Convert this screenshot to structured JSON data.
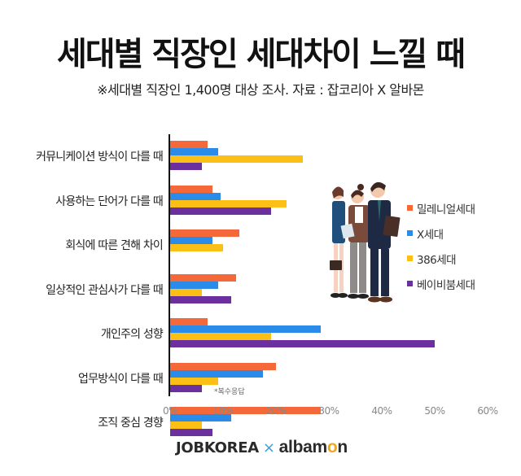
{
  "title": "세대별 직장인 세대차이 느낄 때",
  "subtitle": "※세대별 직장인 1,400명 대상 조사. 자료 : 잡코리아 X 알바몬",
  "note": "*복수응답",
  "footer": {
    "brand1": "JOBKOREA",
    "separator": "×",
    "brand2_pre": "albam",
    "brand2_o": "o",
    "brand2_post": "n"
  },
  "legend": [
    {
      "label": "밀레니얼세대",
      "color": "#f4683a"
    },
    {
      "label": "X세대",
      "color": "#2a8be8"
    },
    {
      "label": "386세대",
      "color": "#fbbf16"
    },
    {
      "label": "베이비붐세대",
      "color": "#6b2f9e"
    }
  ],
  "chart_data": {
    "type": "bar",
    "orientation": "horizontal",
    "title": "세대별 직장인 세대차이 느낄 때",
    "subtitle": "※세대별 직장인 1,400명 대상 조사. 자료 : 잡코리아 X 알바몬",
    "xlabel": "",
    "ylabel": "",
    "xlim": [
      0,
      60
    ],
    "x_ticks": [
      "0%",
      "10%",
      "20%",
      "30%",
      "40%",
      "50%",
      "60%"
    ],
    "grid": false,
    "legend_position": "right",
    "annotation": "*복수응답",
    "categories": [
      "커뮤니케이션 방식이 다를 때",
      "사용하는 단어가 다를 때",
      "회식에 따른 견해 차이",
      "일상적인 관심사가 다를 때",
      "개인주의 성향",
      "업무방식이 다를 때",
      "조직 중심 경향"
    ],
    "series": [
      {
        "name": "밀레니얼세대",
        "color": "#f4683a",
        "values": [
          7,
          8,
          13,
          12.5,
          7,
          20,
          28.5
        ]
      },
      {
        "name": "X세대",
        "color": "#2a8be8",
        "values": [
          9,
          9.5,
          8,
          9,
          28.5,
          17.5,
          11.5
        ]
      },
      {
        "name": "386세대",
        "color": "#fbbf16",
        "values": [
          25,
          22,
          10,
          6,
          19,
          9,
          6
        ]
      },
      {
        "name": "베이비붐세대",
        "color": "#6b2f9e",
        "values": [
          6,
          19,
          0,
          11.5,
          50,
          6,
          8
        ]
      }
    ]
  }
}
